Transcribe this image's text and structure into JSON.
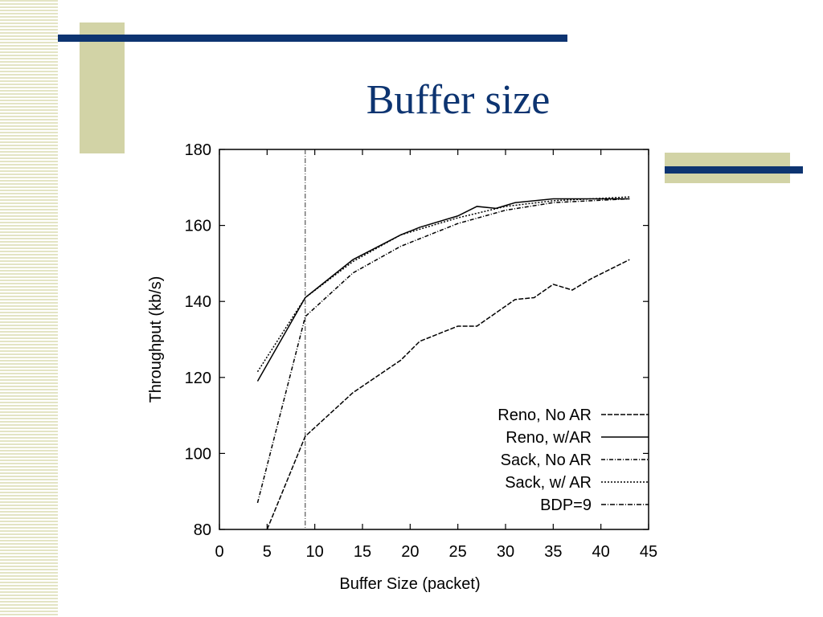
{
  "slide": {
    "title": "Buffer size"
  },
  "chart_data": {
    "type": "line",
    "xlabel": "Buffer Size (packet)",
    "ylabel": "Throughput (kb/s)",
    "xlim": [
      0,
      45
    ],
    "ylim": [
      80,
      180
    ],
    "xticks": [
      0,
      5,
      10,
      15,
      20,
      25,
      30,
      35,
      40,
      45
    ],
    "yticks": [
      80,
      100,
      120,
      140,
      160,
      180
    ],
    "grid": false,
    "legend_position": "bottom-right",
    "series": [
      {
        "name": "Reno, No AR",
        "dash": "6,2",
        "x": [
          5,
          9,
          14,
          19,
          21,
          25,
          27,
          29,
          31,
          33,
          35,
          37,
          39,
          43
        ],
        "y": [
          80,
          104.5,
          116,
          124.5,
          129.5,
          133.5,
          133.5,
          137,
          140.5,
          141,
          144.5,
          143,
          146,
          151
        ]
      },
      {
        "name": "Reno, w/AR",
        "dash": "",
        "x": [
          4,
          9,
          14,
          19,
          21,
          25,
          27,
          29,
          31,
          33,
          35,
          37,
          39,
          43
        ],
        "y": [
          119,
          141,
          151,
          157.5,
          159.5,
          162.5,
          165,
          164.5,
          166,
          166.5,
          167,
          167,
          167,
          167
        ]
      },
      {
        "name": "Sack, No AR",
        "dash": "5,2,1,2",
        "x": [
          4,
          9,
          14,
          19,
          25,
          30,
          35,
          43
        ],
        "y": [
          87,
          136,
          147.5,
          154.5,
          160.5,
          164,
          166,
          167
        ]
      },
      {
        "name": "Sack, w/ AR",
        "dash": "2,2",
        "x": [
          4,
          9,
          14,
          19,
          25,
          30,
          35,
          43
        ],
        "y": [
          121.5,
          141,
          150.5,
          157.5,
          162,
          165,
          166.5,
          167.5
        ]
      }
    ],
    "reference_line": {
      "name": "BDP=9",
      "x": 9,
      "dash": "6,2,1,2"
    }
  }
}
